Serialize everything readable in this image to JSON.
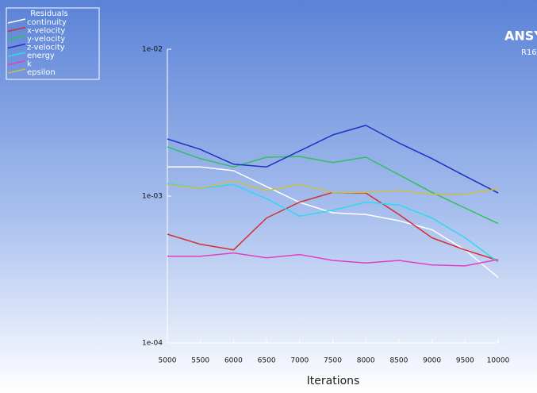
{
  "chart_data": {
    "type": "line",
    "title": "Residuals",
    "brand": "ANSYS",
    "version": "R16.",
    "x_label": "Iterations",
    "log_y": true,
    "x": [
      5000,
      5500,
      6000,
      6500,
      7000,
      7500,
      8000,
      8500,
      9000,
      9500,
      10000
    ],
    "xlim": [
      5000,
      10000
    ],
    "xticks": [
      5000,
      5500,
      6000,
      6500,
      7000,
      7500,
      8000,
      8500,
      9000,
      9500,
      10000
    ],
    "ylim": [
      0.0001,
      0.01
    ],
    "yticks": [
      {
        "value": 0.0001,
        "label": "1e-04"
      },
      {
        "value": 0.001,
        "label": "1e-03"
      },
      {
        "value": 0.01,
        "label": "1e-02"
      }
    ],
    "series": [
      {
        "name": "continuity",
        "color": "#ffffff",
        "values": [
          0.00158,
          0.00158,
          0.00149,
          0.00116,
          0.000906,
          0.00077,
          0.00075,
          0.00068,
          0.00059,
          0.00043,
          0.00028
        ]
      },
      {
        "name": "x-velocity",
        "color": "#d03030",
        "values": [
          0.00055,
          0.00047,
          0.00043,
          0.00071,
          0.00091,
          0.00106,
          0.00105,
          0.00075,
          0.00052,
          0.00043,
          0.000365
        ]
      },
      {
        "name": "y-velocity",
        "color": "#30c060",
        "values": [
          0.00216,
          0.0018,
          0.00158,
          0.00184,
          0.00186,
          0.00169,
          0.00184,
          0.0014,
          0.00106,
          0.00083,
          0.00065
        ]
      },
      {
        "name": "z-velocity",
        "color": "#2030c8",
        "values": [
          0.00245,
          0.00208,
          0.00165,
          0.00158,
          0.00203,
          0.00261,
          0.00303,
          0.0023,
          0.0018,
          0.00137,
          0.00105
        ]
      },
      {
        "name": "energy",
        "color": "#30d8f0",
        "values": [
          0.00122,
          0.00113,
          0.0012,
          0.00096,
          0.00073,
          0.0008,
          0.00091,
          0.00087,
          0.00071,
          0.00052,
          0.000356
        ]
      },
      {
        "name": "k",
        "color": "#e040c0",
        "values": [
          0.00039,
          0.00039,
          0.00041,
          0.00038,
          0.0004,
          0.000365,
          0.00035,
          0.000365,
          0.00034,
          0.000335,
          0.00037
        ]
      },
      {
        "name": "epsilon",
        "color": "#c8c040",
        "values": [
          0.0012,
          0.00113,
          0.00127,
          0.00109,
          0.0012,
          0.00106,
          0.00106,
          0.00109,
          0.00103,
          0.00103,
          0.00112
        ]
      }
    ]
  }
}
